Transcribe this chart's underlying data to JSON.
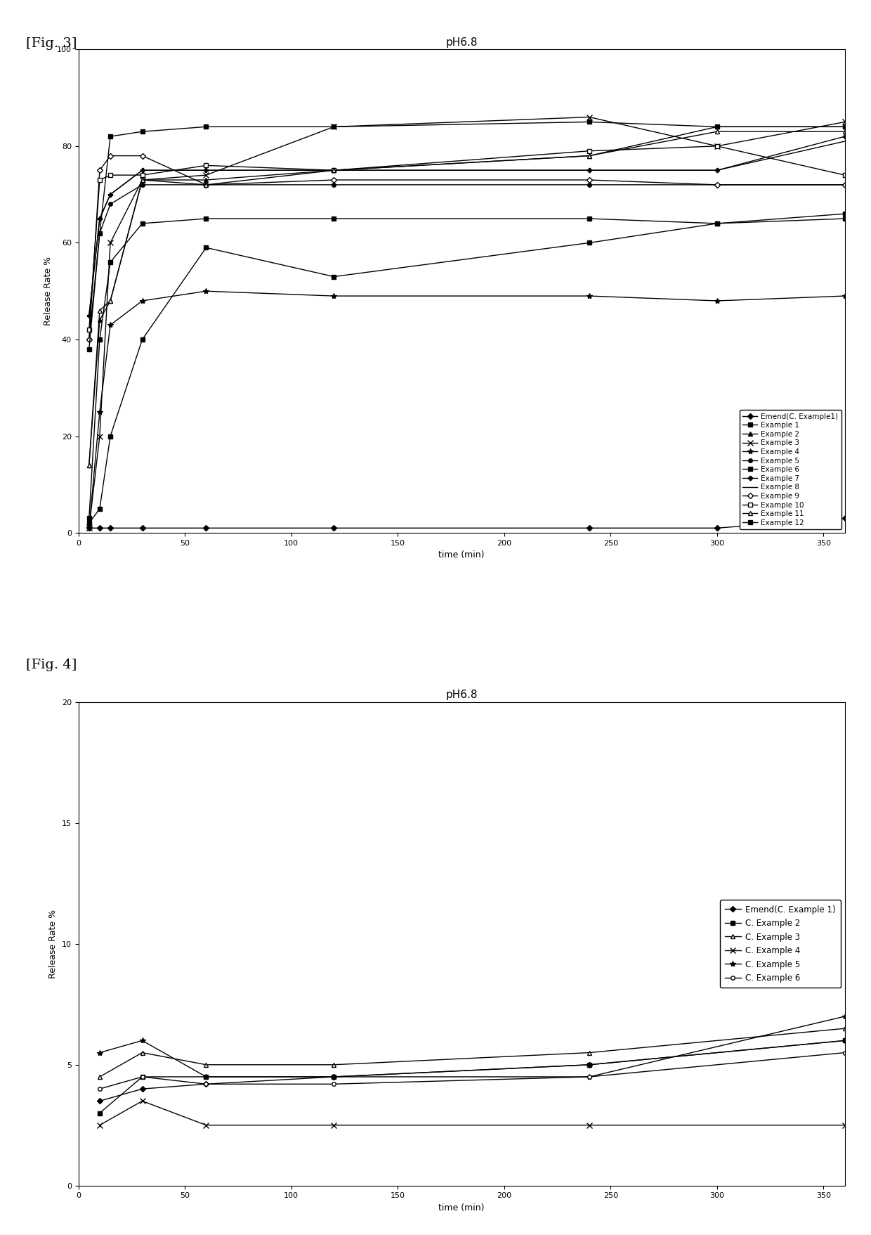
{
  "fig3": {
    "title": "pH6.8",
    "xlabel": "time (min)",
    "ylabel": "Release Rate %",
    "xlim": [
      0,
      360
    ],
    "ylim": [
      0,
      100
    ],
    "xticks": [
      0,
      50,
      100,
      150,
      200,
      250,
      300,
      350
    ],
    "yticks": [
      0,
      20,
      40,
      60,
      80,
      100
    ],
    "series": [
      {
        "label": "Emend(C. Example1)",
        "x": [
          5,
          10,
          15,
          30,
          60,
          120,
          240,
          300,
          360
        ],
        "y": [
          1,
          1,
          1,
          1,
          1,
          1,
          1,
          1,
          3
        ],
        "marker": "D",
        "markersize": 4,
        "linestyle": "-",
        "color": "#000000",
        "markerfacecolor": "#000000"
      },
      {
        "label": "Example 1",
        "x": [
          5,
          10,
          15,
          30,
          60,
          120,
          240,
          300,
          360
        ],
        "y": [
          2,
          5,
          20,
          40,
          59,
          53,
          60,
          64,
          66
        ],
        "marker": "s",
        "markersize": 4,
        "linestyle": "-",
        "color": "#000000",
        "markerfacecolor": "#000000"
      },
      {
        "label": "Example 2",
        "x": [
          5,
          10,
          15,
          30,
          60,
          120,
          240,
          300,
          360
        ],
        "y": [
          14,
          44,
          48,
          73,
          73,
          75,
          78,
          84,
          84
        ],
        "marker": "^",
        "markersize": 5,
        "linestyle": "-",
        "color": "#000000",
        "markerfacecolor": "#000000"
      },
      {
        "label": "Example 3",
        "x": [
          5,
          10,
          15,
          30,
          60,
          120,
          240,
          300,
          360
        ],
        "y": [
          1,
          20,
          60,
          73,
          74,
          84,
          86,
          80,
          85
        ],
        "marker": "x",
        "markersize": 6,
        "linestyle": "-",
        "color": "#000000",
        "markerfacecolor": "#000000"
      },
      {
        "label": "Example 4",
        "x": [
          5,
          10,
          15,
          30,
          60,
          120,
          240,
          300,
          360
        ],
        "y": [
          1,
          25,
          43,
          48,
          50,
          49,
          49,
          48,
          49
        ],
        "marker": "x",
        "markersize": 6,
        "linestyle": "-",
        "color": "#000000",
        "markerfacecolor": "#000000",
        "markerstyle": "asterisk"
      },
      {
        "label": "Example 5",
        "x": [
          5,
          10,
          15,
          30,
          60,
          120,
          240,
          300,
          360
        ],
        "y": [
          40,
          62,
          68,
          72,
          72,
          72,
          72,
          72,
          72
        ],
        "marker": "o",
        "markersize": 4,
        "linestyle": "-",
        "color": "#000000",
        "markerfacecolor": "#000000"
      },
      {
        "label": "Example 6",
        "x": [
          5,
          10,
          15,
          30,
          60,
          120,
          240,
          300,
          360
        ],
        "y": [
          3,
          40,
          56,
          64,
          65,
          65,
          65,
          64,
          65
        ],
        "marker": "s",
        "markersize": 4,
        "linestyle": "-",
        "color": "#000000",
        "markerfacecolor": "#000000"
      },
      {
        "label": "Example 7",
        "x": [
          5,
          10,
          15,
          30,
          60,
          120,
          240,
          300,
          360
        ],
        "y": [
          45,
          65,
          70,
          75,
          75,
          75,
          75,
          75,
          82
        ],
        "marker": "P",
        "markersize": 5,
        "linestyle": "-",
        "color": "#000000",
        "markerfacecolor": "#000000"
      },
      {
        "label": "Example 8",
        "x": [
          5,
          10,
          15,
          30,
          60,
          120,
          240,
          300,
          360
        ],
        "y": [
          45,
          65,
          70,
          75,
          75,
          75,
          75,
          75,
          81
        ],
        "marker": "None",
        "markersize": 4,
        "linestyle": "-",
        "color": "#000000",
        "markerfacecolor": "#000000"
      },
      {
        "label": "Example 9",
        "x": [
          5,
          10,
          15,
          30,
          60,
          120,
          240,
          300,
          360
        ],
        "y": [
          40,
          75,
          78,
          78,
          72,
          73,
          73,
          72,
          72
        ],
        "marker": "D",
        "markersize": 4,
        "linestyle": "-",
        "color": "#000000",
        "markerfacecolor": "white"
      },
      {
        "label": "Example 10",
        "x": [
          5,
          10,
          15,
          30,
          60,
          120,
          240,
          300,
          360
        ],
        "y": [
          42,
          73,
          74,
          74,
          76,
          75,
          79,
          80,
          74
        ],
        "marker": "s",
        "markersize": 4,
        "linestyle": "-",
        "color": "#000000",
        "markerfacecolor": "white"
      },
      {
        "label": "Example 11",
        "x": [
          5,
          10,
          15,
          30,
          60,
          120,
          240,
          300,
          360
        ],
        "y": [
          14,
          46,
          48,
          73,
          72,
          75,
          78,
          83,
          83
        ],
        "marker": "^",
        "markersize": 5,
        "linestyle": "-",
        "color": "#000000",
        "markerfacecolor": "white"
      },
      {
        "label": "Example 12",
        "x": [
          5,
          10,
          15,
          30,
          60,
          120,
          240,
          300,
          360
        ],
        "y": [
          38,
          62,
          82,
          83,
          84,
          84,
          85,
          84,
          84
        ],
        "marker": "s",
        "markersize": 5,
        "linestyle": "-",
        "color": "#000000",
        "markerfacecolor": "#000000"
      }
    ]
  },
  "fig4": {
    "title": "pH6.8",
    "xlabel": "time (min)",
    "ylabel": "Release Rate %",
    "xlim": [
      0,
      360
    ],
    "ylim": [
      0,
      20
    ],
    "xticks": [
      0,
      50,
      100,
      150,
      200,
      250,
      300,
      350
    ],
    "yticks": [
      0,
      5,
      10,
      15,
      20
    ],
    "series": [
      {
        "label": "Emend(C. Example 1)",
        "x": [
          10,
          30,
          60,
          120,
          240,
          360
        ],
        "y": [
          3.5,
          4.0,
          4.2,
          4.5,
          5.0,
          6.0
        ],
        "marker": "D",
        "markersize": 4,
        "linestyle": "-",
        "color": "#000000",
        "markerfacecolor": "#000000"
      },
      {
        "label": "C. Example 2",
        "x": [
          10,
          30,
          60,
          120,
          240,
          360
        ],
        "y": [
          3.0,
          4.5,
          4.5,
          4.5,
          5.0,
          6.0
        ],
        "marker": "s",
        "markersize": 4,
        "linestyle": "-",
        "color": "#000000",
        "markerfacecolor": "#000000"
      },
      {
        "label": "C. Example 3",
        "x": [
          10,
          30,
          60,
          120,
          240,
          360
        ],
        "y": [
          4.5,
          5.5,
          5.0,
          5.0,
          5.5,
          6.5
        ],
        "marker": "^",
        "markersize": 5,
        "linestyle": "-",
        "color": "#000000",
        "markerfacecolor": "white"
      },
      {
        "label": "C. Example 4",
        "x": [
          10,
          30,
          60,
          120,
          240,
          360
        ],
        "y": [
          2.5,
          3.5,
          2.5,
          2.5,
          2.5,
          2.5
        ],
        "marker": "x",
        "markersize": 6,
        "linestyle": "-",
        "color": "#000000",
        "markerfacecolor": "#000000"
      },
      {
        "label": "C. Example 5",
        "x": [
          10,
          30,
          60,
          120,
          240,
          360
        ],
        "y": [
          5.5,
          6.0,
          4.5,
          4.5,
          4.5,
          7.0
        ],
        "marker": "x",
        "markersize": 6,
        "linestyle": "-",
        "color": "#000000",
        "markerfacecolor": "#000000",
        "markerstyle": "asterisk"
      },
      {
        "label": "C. Example 6",
        "x": [
          10,
          30,
          60,
          120,
          240,
          360
        ],
        "y": [
          4.0,
          4.5,
          4.2,
          4.2,
          4.5,
          5.5
        ],
        "marker": "o",
        "markersize": 4,
        "linestyle": "-",
        "color": "#000000",
        "markerfacecolor": "white"
      }
    ]
  },
  "fig3_label": "[Fig. 3]",
  "fig4_label": "[Fig. 4]",
  "label_fontsize": 14,
  "background_color": "#ffffff"
}
